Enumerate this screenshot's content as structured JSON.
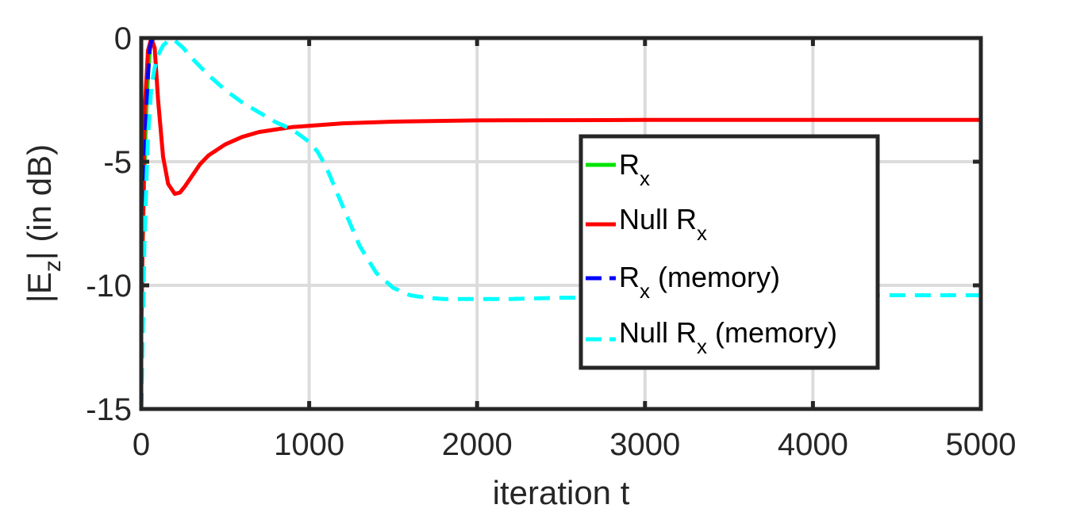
{
  "chart_data": {
    "type": "line",
    "xlabel": "iteration t",
    "ylabel": {
      "prefix": "|E",
      "sub": "z",
      "suffix": "| (in dB)"
    },
    "xlim": [
      0,
      5000
    ],
    "ylim": [
      -15,
      0
    ],
    "xticks": [
      0,
      1000,
      2000,
      3000,
      4000,
      5000
    ],
    "yticks": [
      0,
      -5,
      -10,
      -15
    ],
    "xtick_labels": [
      "0",
      "1000",
      "2000",
      "3000",
      "4000",
      "5000"
    ],
    "ytick_labels": [
      "0",
      "-5",
      "-10",
      "-15"
    ],
    "grid": true,
    "legend_position": "center-right",
    "series": [
      {
        "name": "R",
        "name_sub": "x",
        "color": "#00e400",
        "style": "solid",
        "x": [
          0,
          10,
          20,
          30,
          40,
          50,
          60,
          80,
          100,
          200,
          500,
          1000,
          2000,
          3000,
          4000,
          5000
        ],
        "y": [
          -11.0,
          -8.0,
          -5.0,
          -3.0,
          -1.5,
          -0.5,
          -0.1,
          0,
          0,
          0,
          0,
          0,
          0,
          0,
          0,
          0
        ]
      },
      {
        "name": "Null R",
        "name_sub": "x",
        "color": "#ff0000",
        "style": "solid",
        "x": [
          0,
          20,
          40,
          60,
          80,
          100,
          130,
          160,
          200,
          230,
          260,
          300,
          350,
          400,
          500,
          600,
          700,
          800,
          900,
          1000,
          1200,
          1500,
          1800,
          2000,
          2500,
          3000,
          3500,
          4000,
          4500,
          5000
        ],
        "y": [
          -12,
          -3,
          -0.5,
          0,
          -0.4,
          -2.5,
          -4.8,
          -5.9,
          -6.3,
          -6.25,
          -6.0,
          -5.6,
          -5.1,
          -4.75,
          -4.3,
          -4.0,
          -3.8,
          -3.7,
          -3.6,
          -3.55,
          -3.45,
          -3.38,
          -3.35,
          -3.33,
          -3.32,
          -3.31,
          -3.31,
          -3.31,
          -3.31,
          -3.31
        ]
      },
      {
        "name": "R",
        "name_sub": "x",
        "name_suffix": " (memory)",
        "color": "#0000ff",
        "style": "dashed",
        "x": [
          0,
          10,
          20,
          30,
          40,
          50,
          60,
          80,
          100,
          200,
          500,
          1000,
          2000,
          3000,
          4000,
          5000
        ],
        "y": [
          -15,
          -10,
          -6,
          -3,
          -1.5,
          -0.5,
          -0.1,
          0,
          0,
          0,
          0,
          0,
          0,
          0,
          0,
          0
        ]
      },
      {
        "name": "Null R",
        "name_sub": "x",
        "name_suffix": " (memory)",
        "color": "#00ffff",
        "style": "dashed",
        "x": [
          0,
          20,
          40,
          60,
          80,
          100,
          130,
          170,
          200,
          250,
          300,
          400,
          500,
          600,
          700,
          800,
          900,
          1000,
          1050,
          1100,
          1200,
          1300,
          1400,
          1500,
          1600,
          1700,
          1800,
          2000,
          2200,
          2500,
          3000,
          3500,
          4000,
          4500,
          5000
        ],
        "y": [
          -15,
          -8,
          -4,
          -2,
          -1.2,
          -0.7,
          -0.3,
          -0.05,
          -0.1,
          -0.4,
          -0.8,
          -1.5,
          -2.1,
          -2.6,
          -3.0,
          -3.4,
          -3.7,
          -4.2,
          -4.6,
          -5.2,
          -6.8,
          -8.4,
          -9.5,
          -10.1,
          -10.4,
          -10.5,
          -10.55,
          -10.55,
          -10.55,
          -10.5,
          -10.5,
          -10.45,
          -10.4,
          -10.4,
          -10.4
        ]
      }
    ]
  }
}
